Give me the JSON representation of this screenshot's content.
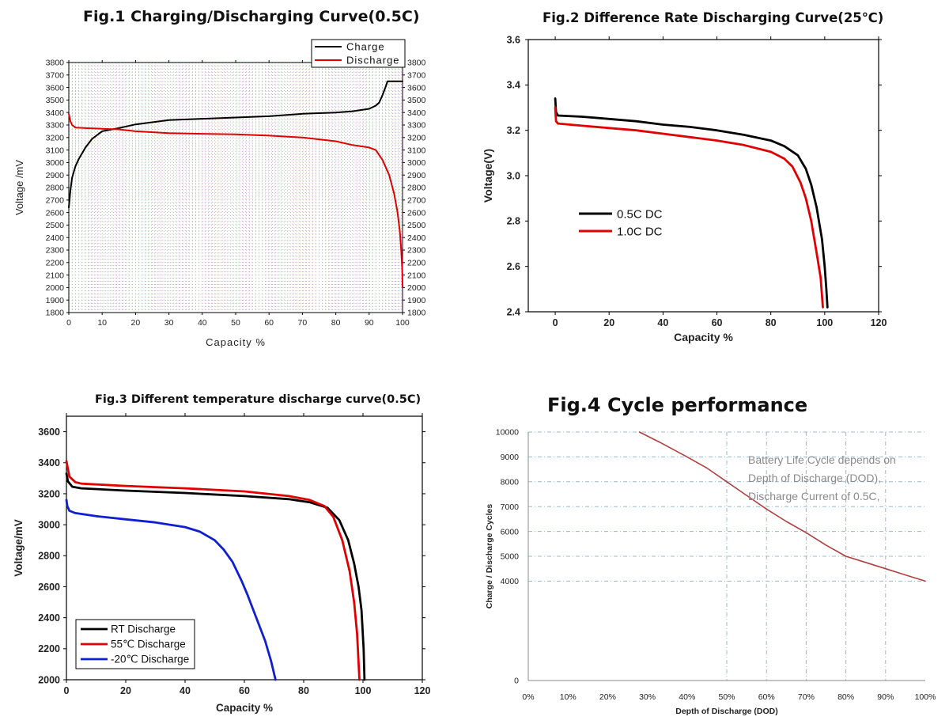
{
  "colors": {
    "charge": "#000000",
    "discharge": "#e00000",
    "cold": "#1020d0",
    "cycle": "#b04040",
    "grid1": "#80dd80",
    "grid1b": "#7fa7e6",
    "grid4": "#9fb8c8"
  },
  "chart_data": [
    {
      "type": "line",
      "title": "Fig.1  Charging/Discharging Curve(0.5C)",
      "xlabel": "Capacity  %",
      "ylabel": "Voltage /mV",
      "xlim": [
        0,
        100
      ],
      "ylim": [
        1800,
        3800
      ],
      "xticks": [
        "0",
        "10",
        "20",
        "30",
        "40",
        "50",
        "60",
        "70",
        "80",
        "90",
        "100"
      ],
      "yticks": [
        "1800",
        "1900",
        "2000",
        "2100",
        "2200",
        "2300",
        "2400",
        "2500",
        "2600",
        "2700",
        "2800",
        "2900",
        "3000",
        "3100",
        "3200",
        "3300",
        "3400",
        "3500",
        "3600",
        "3700",
        "3800"
      ],
      "grid": true,
      "legend": "top-right",
      "series": [
        {
          "name": "Charge",
          "color": "black",
          "points": [
            [
              0,
              2640
            ],
            [
              0.5,
              2780
            ],
            [
              1,
              2880
            ],
            [
              2,
              2970
            ],
            [
              3,
              3030
            ],
            [
              5,
              3120
            ],
            [
              7,
              3190
            ],
            [
              10,
              3250
            ],
            [
              15,
              3275
            ],
            [
              20,
              3305
            ],
            [
              30,
              3340
            ],
            [
              40,
              3350
            ],
            [
              50,
              3360
            ],
            [
              60,
              3370
            ],
            [
              70,
              3390
            ],
            [
              80,
              3400
            ],
            [
              85,
              3410
            ],
            [
              90,
              3430
            ],
            [
              92,
              3455
            ],
            [
              93,
              3480
            ],
            [
              94,
              3540
            ],
            [
              95,
              3610
            ],
            [
              95.5,
              3650
            ],
            [
              100,
              3650
            ]
          ]
        },
        {
          "name": "Discharge",
          "color": "red",
          "points": [
            [
              0,
              3390
            ],
            [
              0.5,
              3330
            ],
            [
              1,
              3300
            ],
            [
              2,
              3280
            ],
            [
              5,
              3275
            ],
            [
              10,
              3270
            ],
            [
              15,
              3265
            ],
            [
              20,
              3250
            ],
            [
              30,
              3235
            ],
            [
              40,
              3230
            ],
            [
              50,
              3225
            ],
            [
              60,
              3215
            ],
            [
              70,
              3200
            ],
            [
              80,
              3170
            ],
            [
              85,
              3140
            ],
            [
              90,
              3120
            ],
            [
              92,
              3100
            ],
            [
              94,
              3020
            ],
            [
              96,
              2900
            ],
            [
              97.5,
              2750
            ],
            [
              98.5,
              2600
            ],
            [
              99.2,
              2450
            ],
            [
              99.6,
              2300
            ],
            [
              99.9,
              2150
            ],
            [
              100,
              2000
            ]
          ]
        }
      ]
    },
    {
      "type": "line",
      "title": "Fig.2 Difference Rate Discharging Curve(25℃)",
      "xlabel": "Capacity %",
      "ylabel": "Voltage(V)",
      "xlim": [
        -10,
        120
      ],
      "ylim": [
        2.4,
        3.6
      ],
      "xticks": [
        "0",
        "20",
        "40",
        "60",
        "80",
        "100",
        "120"
      ],
      "yticks": [
        "2.4",
        "2.6",
        "2.8",
        "3.0",
        "3.2",
        "3.4",
        "3.6"
      ],
      "grid": false,
      "legend": "center-left",
      "series": [
        {
          "name": "0.5C DC",
          "color": "black",
          "points": [
            [
              0,
              3.34
            ],
            [
              0.3,
              3.28
            ],
            [
              1,
              3.265
            ],
            [
              10,
              3.26
            ],
            [
              20,
              3.25
            ],
            [
              30,
              3.24
            ],
            [
              40,
              3.225
            ],
            [
              50,
              3.215
            ],
            [
              60,
              3.2
            ],
            [
              70,
              3.18
            ],
            [
              80,
              3.155
            ],
            [
              85,
              3.13
            ],
            [
              90,
              3.09
            ],
            [
              93,
              3.03
            ],
            [
              95,
              2.96
            ],
            [
              97,
              2.86
            ],
            [
              99,
              2.72
            ],
            [
              100,
              2.6
            ],
            [
              100.6,
              2.5
            ],
            [
              101,
              2.42
            ]
          ]
        },
        {
          "name": "1.0C DC",
          "color": "red",
          "points": [
            [
              0,
              3.3
            ],
            [
              0.3,
              3.24
            ],
            [
              1,
              3.23
            ],
            [
              10,
              3.22
            ],
            [
              20,
              3.21
            ],
            [
              30,
              3.2
            ],
            [
              40,
              3.185
            ],
            [
              50,
              3.17
            ],
            [
              60,
              3.155
            ],
            [
              70,
              3.135
            ],
            [
              80,
              3.105
            ],
            [
              85,
              3.075
            ],
            [
              88,
              3.04
            ],
            [
              91,
              2.97
            ],
            [
              93,
              2.9
            ],
            [
              95,
              2.8
            ],
            [
              97,
              2.66
            ],
            [
              98.5,
              2.55
            ],
            [
              99.3,
              2.42
            ]
          ]
        }
      ]
    },
    {
      "type": "line",
      "title": "Fig.3 Different temperature discharge curve(0.5C)",
      "xlabel": "Capacity %",
      "ylabel": "Voltage/mV",
      "xlim": [
        0,
        120
      ],
      "ylim": [
        2000,
        3700
      ],
      "xticks": [
        "0",
        "20",
        "40",
        "60",
        "80",
        "100",
        "120"
      ],
      "yticks": [
        "2000",
        "2200",
        "2400",
        "2600",
        "2800",
        "3000",
        "3200",
        "3400",
        "3600"
      ],
      "grid": false,
      "legend": "bottom-left",
      "series": [
        {
          "name": "RT     Discharge",
          "color": "black",
          "points": [
            [
              0,
              3330
            ],
            [
              0.5,
              3280
            ],
            [
              2,
              3245
            ],
            [
              5,
              3235
            ],
            [
              20,
              3220
            ],
            [
              40,
              3205
            ],
            [
              60,
              3185
            ],
            [
              75,
              3165
            ],
            [
              82,
              3145
            ],
            [
              88,
              3110
            ],
            [
              92,
              3030
            ],
            [
              95,
              2900
            ],
            [
              97,
              2750
            ],
            [
              98.5,
              2600
            ],
            [
              99.5,
              2450
            ],
            [
              100.2,
              2200
            ],
            [
              100.5,
              2000
            ]
          ]
        },
        {
          "name": "55℃  Discharge",
          "color": "red",
          "points": [
            [
              0,
              3410
            ],
            [
              0.5,
              3360
            ],
            [
              1,
              3310
            ],
            [
              3,
              3275
            ],
            [
              5,
              3265
            ],
            [
              20,
              3250
            ],
            [
              40,
              3235
            ],
            [
              60,
              3215
            ],
            [
              75,
              3185
            ],
            [
              82,
              3160
            ],
            [
              87,
              3120
            ],
            [
              90,
              3050
            ],
            [
              93,
              2900
            ],
            [
              95.5,
              2700
            ],
            [
              97,
              2500
            ],
            [
              98,
              2300
            ],
            [
              98.8,
              2000
            ]
          ]
        },
        {
          "name": "-20℃ Discharge",
          "color": "blue",
          "points": [
            [
              0,
              3160
            ],
            [
              0.3,
              3120
            ],
            [
              1,
              3090
            ],
            [
              3,
              3075
            ],
            [
              10,
              3055
            ],
            [
              20,
              3035
            ],
            [
              30,
              3015
            ],
            [
              40,
              2985
            ],
            [
              45,
              2955
            ],
            [
              50,
              2900
            ],
            [
              53,
              2840
            ],
            [
              56,
              2760
            ],
            [
              59,
              2640
            ],
            [
              61,
              2550
            ],
            [
              63,
              2450
            ],
            [
              65,
              2350
            ],
            [
              67,
              2250
            ],
            [
              69,
              2120
            ],
            [
              70.5,
              2000
            ]
          ]
        }
      ]
    },
    {
      "type": "line",
      "title": "Fig.4 Cycle performance",
      "xlabel": "Depth of Discharge (DOD)",
      "ylabel": "Charge / Discharge Cycles",
      "xlim": [
        0,
        100
      ],
      "ylim": [
        0,
        10000
      ],
      "xticks": [
        "0%",
        "10%",
        "20%",
        "30%",
        "40%",
        "50%",
        "60%",
        "70%",
        "80%",
        "90%",
        "100%"
      ],
      "yticks": [
        "0",
        "4000",
        "5000",
        "6000",
        "7000",
        "8000",
        "9000",
        "10000"
      ],
      "grid": true,
      "annotation": [
        "Battery Life Cycle depends on",
        "Depth of Discharge (DOD),",
        "Discharge Current of 0.5C,"
      ],
      "series": [
        {
          "name": "Cycles",
          "color": "brown",
          "points": [
            [
              28,
              10000
            ],
            [
              33,
              9600
            ],
            [
              40,
              9000
            ],
            [
              45,
              8550
            ],
            [
              50,
              8000
            ],
            [
              55,
              7450
            ],
            [
              60,
              6900
            ],
            [
              65,
              6400
            ],
            [
              70,
              5950
            ],
            [
              75,
              5450
            ],
            [
              80,
              5000
            ],
            [
              85,
              4750
            ],
            [
              90,
              4500
            ],
            [
              95,
              4250
            ],
            [
              100,
              4000
            ]
          ]
        }
      ]
    }
  ]
}
